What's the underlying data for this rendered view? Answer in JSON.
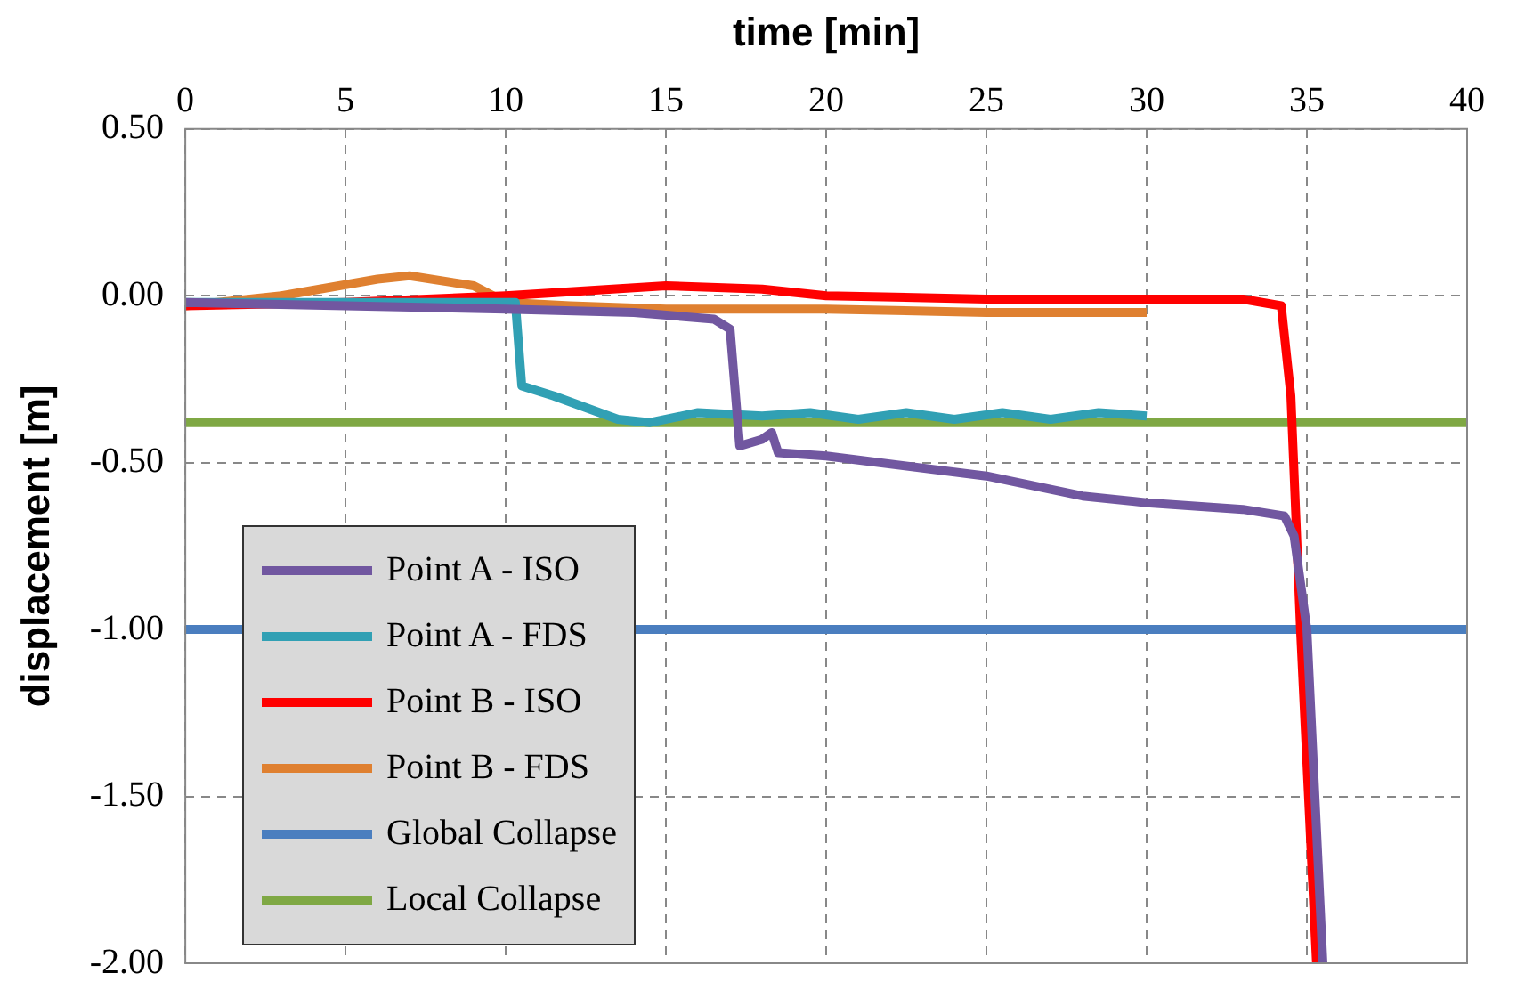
{
  "chart_data": {
    "type": "line",
    "xlabel": "time [min]",
    "ylabel": "displacement [m]",
    "xlim": [
      0,
      40
    ],
    "xticks": [
      0,
      5,
      10,
      15,
      20,
      25,
      30,
      35,
      40
    ],
    "ylim": [
      -2.0,
      0.5
    ],
    "yticks": [
      {
        "value": 0.5,
        "label": "0.50"
      },
      {
        "value": 0,
        "label": "0.00"
      },
      {
        "value": -0.5,
        "label": "-0.50"
      },
      {
        "value": -1.0,
        "label": "-1.00"
      },
      {
        "value": -1.5,
        "label": "-1.50"
      },
      {
        "value": -2.0,
        "label": "-2.00"
      }
    ],
    "grid": true,
    "legend": "bottom left",
    "marker": "none",
    "line_style": "solid",
    "series": [
      {
        "name": "Point A - ISO",
        "color": "#7157a0",
        "x": [
          0,
          10,
          14,
          16.5,
          17.0,
          17.3,
          18,
          18.3,
          18.5,
          20,
          25,
          28,
          30,
          33,
          34.3,
          34.6,
          35,
          35.5
        ],
        "values": [
          -0.02,
          -0.04,
          -0.05,
          -0.07,
          -0.1,
          -0.45,
          -0.43,
          -0.41,
          -0.47,
          -0.48,
          -0.54,
          -0.6,
          -0.62,
          -0.64,
          -0.66,
          -0.72,
          -1.0,
          -2.0
        ]
      },
      {
        "name": "Point A - FDS",
        "color": "#31a0b4",
        "x": [
          0,
          10.3,
          10.5,
          11.5,
          13.5,
          14.5,
          16,
          18,
          19.5,
          21,
          22.5,
          24,
          25.5,
          27,
          28.5,
          30
        ],
        "values": [
          -0.02,
          -0.02,
          -0.27,
          -0.3,
          -0.37,
          -0.38,
          -0.35,
          -0.36,
          -0.35,
          -0.37,
          -0.35,
          -0.37,
          -0.35,
          -0.37,
          -0.35,
          -0.36
        ]
      },
      {
        "name": "Point B - ISO",
        "color": "#ff0000",
        "x": [
          0,
          5,
          10,
          15,
          18,
          20,
          25,
          30,
          33,
          34.2,
          34.5,
          34.8,
          35.3
        ],
        "values": [
          -0.03,
          -0.02,
          0.0,
          0.03,
          0.02,
          0.0,
          -0.01,
          -0.01,
          -0.01,
          -0.03,
          -0.3,
          -1.0,
          -2.0
        ]
      },
      {
        "name": "Point B - FDS",
        "color": "#df8030",
        "x": [
          0,
          3,
          6,
          7,
          9,
          10,
          12,
          15,
          20,
          25,
          30
        ],
        "values": [
          -0.03,
          0.0,
          0.05,
          0.06,
          0.03,
          -0.02,
          -0.03,
          -0.04,
          -0.04,
          -0.05,
          -0.05
        ]
      },
      {
        "name": "Global Collapse",
        "color": "#4a7ebf",
        "x": [
          0,
          40
        ],
        "values": [
          -1.0,
          -1.0
        ]
      },
      {
        "name": "Local Collapse",
        "color": "#7fa844",
        "x": [
          0,
          40
        ],
        "values": [
          -0.38,
          -0.38
        ]
      }
    ]
  }
}
